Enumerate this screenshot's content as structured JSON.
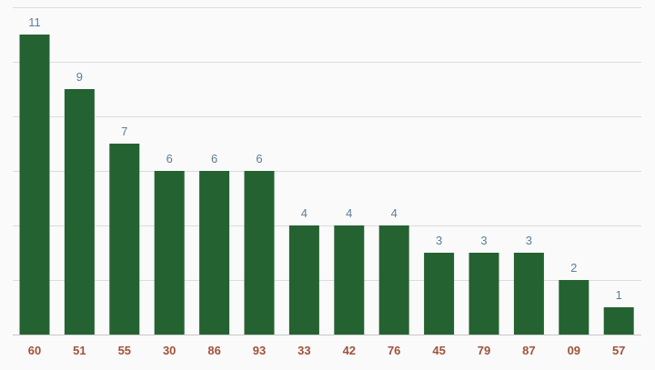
{
  "chart_data": {
    "type": "bar",
    "categories": [
      "60",
      "51",
      "55",
      "30",
      "86",
      "93",
      "33",
      "42",
      "76",
      "45",
      "79",
      "87",
      "09",
      "57"
    ],
    "values": [
      11,
      9,
      7,
      6,
      6,
      6,
      4,
      4,
      4,
      3,
      3,
      3,
      2,
      1
    ],
    "title": "",
    "xlabel": "",
    "ylabel": "",
    "ylim": [
      0,
      12
    ],
    "grid": true,
    "data_labels": true,
    "legend": "none"
  },
  "colors": {
    "bar": "#246232",
    "value_label": "#5b7f99",
    "tick_label": "#a0523a",
    "grid": "#dcdcdc",
    "background": "#fafafa"
  }
}
